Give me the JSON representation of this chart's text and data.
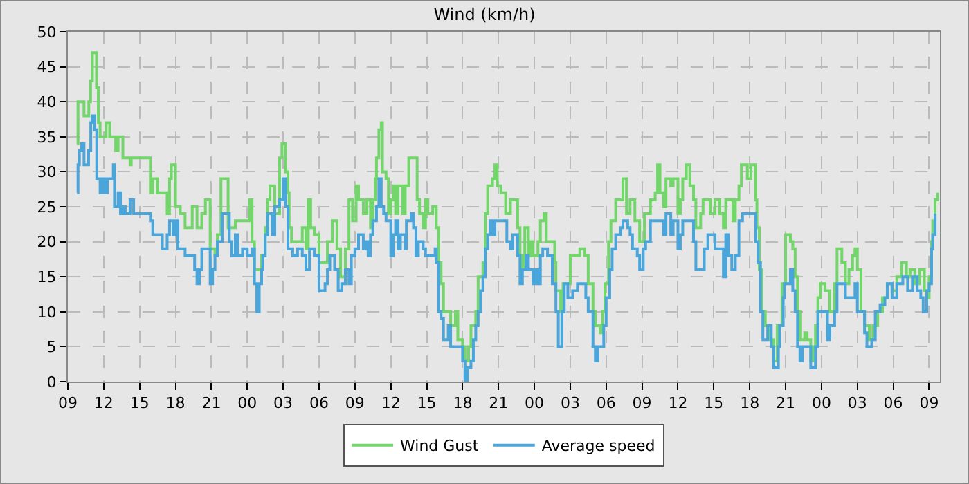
{
  "chart_data": {
    "type": "step",
    "title": "Wind (km/h)",
    "legend": "bottom",
    "grid": true,
    "xlim": [
      "--01-01T09:00",
      "--01-04T09:54"
    ],
    "ylim": [
      0,
      50
    ],
    "xticks": [
      {
        "value": "--01-01T09:00",
        "label": "09"
      },
      {
        "value": "--01-01T12:00",
        "label": "12"
      },
      {
        "value": "--01-01T15:00",
        "label": "15"
      },
      {
        "value": "--01-01T18:00",
        "label": "18"
      },
      {
        "value": "--01-01T21:00",
        "label": "21"
      },
      {
        "value": "--01-02T00:00",
        "label": "00"
      },
      {
        "value": "--01-02T03:00",
        "label": "03"
      },
      {
        "value": "--01-02T06:00",
        "label": "06"
      },
      {
        "value": "--01-02T09:00",
        "label": "09"
      },
      {
        "value": "--01-02T12:00",
        "label": "12"
      },
      {
        "value": "--01-02T15:00",
        "label": "15"
      },
      {
        "value": "--01-02T18:00",
        "label": "18"
      },
      {
        "value": "--01-02T21:00",
        "label": "21"
      },
      {
        "value": "--01-03T00:00",
        "label": "00"
      },
      {
        "value": "--01-03T03:00",
        "label": "03"
      },
      {
        "value": "--01-03T06:00",
        "label": "06"
      },
      {
        "value": "--01-03T09:00",
        "label": "09"
      },
      {
        "value": "--01-03T12:00",
        "label": "12"
      },
      {
        "value": "--01-03T15:00",
        "label": "15"
      },
      {
        "value": "--01-03T18:00",
        "label": "18"
      },
      {
        "value": "--01-03T21:00",
        "label": "21"
      },
      {
        "value": "--01-04T00:00",
        "label": "00"
      },
      {
        "value": "--01-04T03:00",
        "label": "03"
      },
      {
        "value": "--01-04T06:00",
        "label": "06"
      },
      {
        "value": "--01-04T09:00",
        "label": "09"
      }
    ],
    "yticks": [
      0,
      5,
      10,
      15,
      20,
      25,
      30,
      35,
      40,
      45,
      50
    ],
    "series": [
      {
        "name": "Wind Gust",
        "color": "#72d66a",
        "x": [
          "--01-01T09:46",
          "--01-01T09:51",
          "--01-01T10:21",
          "--01-01T10:45",
          "--01-01T10:54",
          "--01-01T11:03",
          "--01-01T11:24",
          "--01-01T11:33",
          "--01-01T11:42",
          "--01-01T12:12",
          "--01-01T12:30",
          "--01-01T13:00",
          "--01-01T13:12",
          "--01-01T13:36",
          "--01-01T14:12",
          "--01-01T14:18",
          "--01-01T15:54",
          "--01-01T16:06",
          "--01-01T16:30",
          "--01-01T17:18",
          "--01-01T17:30",
          "--01-01T17:39",
          "--01-01T18:00",
          "--01-01T18:24",
          "--01-01T18:48",
          "--01-01T19:24",
          "--01-01T19:48",
          "--01-01T20:12",
          "--01-01T20:30",
          "--01-01T20:54",
          "--01-01T21:18",
          "--01-01T21:30",
          "--01-01T21:48",
          "--01-01T22:24",
          "--01-01T23:00",
          "--01-02T00:12",
          "--01-02T00:24",
          "--01-02T00:36",
          "--01-02T01:12",
          "--01-02T01:30",
          "--01-02T01:42",
          "--01-02T01:54",
          "--01-02T02:18",
          "--01-02T02:42",
          "--01-02T02:54",
          "--01-02T03:12",
          "--01-02T03:24",
          "--01-02T03:30",
          "--01-02T03:42",
          "--01-02T04:36",
          "--01-02T04:54",
          "--01-02T05:06",
          "--01-02T05:18",
          "--01-02T05:36",
          "--01-02T06:00",
          "--01-02T06:42",
          "--01-02T07:06",
          "--01-02T07:30",
          "--01-02T07:48",
          "--01-02T08:12",
          "--01-02T08:30",
          "--01-02T08:48",
          "--01-02T09:06",
          "--01-02T09:18",
          "--01-02T09:42",
          "--01-02T10:00",
          "--01-02T10:18",
          "--01-02T10:30",
          "--01-02T10:42",
          "--01-02T10:48",
          "--01-02T11:00",
          "--01-02T11:12",
          "--01-02T11:18",
          "--01-02T11:36",
          "--01-02T11:48",
          "--01-02T12:00",
          "--01-02T12:12",
          "--01-02T12:24",
          "--01-02T12:36",
          "--01-02T13:00",
          "--01-02T13:12",
          "--01-02T13:30",
          "--01-02T14:12",
          "--01-02T14:24",
          "--01-02T14:42",
          "--01-02T14:54",
          "--01-02T15:06",
          "--01-02T15:30",
          "--01-02T15:48",
          "--01-02T16:00",
          "--01-02T16:12",
          "--01-02T16:24",
          "--01-02T17:00",
          "--01-02T17:24",
          "--01-02T17:36",
          "--01-02T18:00",
          "--01-02T18:12",
          "--01-02T18:30",
          "--01-02T18:42",
          "--01-02T19:06",
          "--01-02T19:18",
          "--01-02T19:42",
          "--01-02T19:54",
          "--01-02T20:06",
          "--01-02T20:30",
          "--01-02T20:42",
          "--01-02T20:54",
          "--01-02T21:12",
          "--01-02T21:36",
          "--01-02T22:00",
          "--01-02T22:36",
          "--01-02T22:48",
          "--01-02T23:00",
          "--01-02T23:12",
          "--01-02T23:30",
          "--01-02T23:42",
          "--01-02T23:54",
          "--01-03T00:18",
          "--01-03T00:30",
          "--01-03T00:48",
          "--01-03T01:00",
          "--01-03T01:42",
          "--01-03T01:48",
          "--01-03T02:12",
          "--01-03T02:24",
          "--01-03T03:00",
          "--01-03T03:48",
          "--01-03T04:12",
          "--01-03T04:30",
          "--01-03T04:54",
          "--01-03T05:06",
          "--01-03T05:30",
          "--01-03T05:42",
          "--01-03T05:54",
          "--01-03T06:12",
          "--01-03T06:24",
          "--01-03T06:48",
          "--01-03T07:24",
          "--01-03T07:42",
          "--01-03T08:00",
          "--01-03T08:24",
          "--01-03T08:48",
          "--01-03T09:12",
          "--01-03T09:42",
          "--01-03T10:06",
          "--01-03T10:18",
          "--01-03T10:30",
          "--01-03T10:48",
          "--01-03T11:00",
          "--01-03T11:24",
          "--01-03T11:36",
          "--01-03T12:00",
          "--01-03T12:12",
          "--01-03T12:24",
          "--01-03T12:42",
          "--01-03T13:00",
          "--01-03T13:18",
          "--01-03T13:30",
          "--01-03T13:54",
          "--01-03T14:06",
          "--01-03T14:42",
          "--01-03T15:06",
          "--01-03T15:30",
          "--01-03T15:48",
          "--01-03T16:00",
          "--01-03T16:36",
          "--01-03T16:48",
          "--01-03T17:06",
          "--01-03T17:18",
          "--01-03T17:48",
          "--01-03T18:06",
          "--01-03T18:30",
          "--01-03T18:36",
          "--01-03T18:48",
          "--01-03T19:00",
          "--01-03T19:18",
          "--01-03T19:42",
          "--01-03T20:00",
          "--01-03T20:18",
          "--01-03T20:42",
          "--01-03T21:00",
          "--01-03T21:24",
          "--01-03T21:36",
          "--01-03T21:48",
          "--01-03T22:00",
          "--01-03T22:12",
          "--01-03T22:36",
          "--01-03T22:48",
          "--01-03T23:06",
          "--01-03T23:18",
          "--01-03T23:30",
          "--01-03T23:42",
          "--01-03T23:54",
          "--01-04T00:18",
          "--01-04T00:42",
          "--01-04T01:06",
          "--01-04T01:18",
          "--01-04T01:42",
          "--01-04T02:00",
          "--01-04T02:18",
          "--01-04T02:36",
          "--01-04T02:48",
          "--01-04T03:00",
          "--01-04T03:18",
          "--01-04T03:36",
          "--01-04T04:00",
          "--01-04T04:18",
          "--01-04T04:42",
          "--01-04T05:06",
          "--01-04T05:30",
          "--01-04T05:54",
          "--01-04T06:18",
          "--01-04T06:42",
          "--01-04T07:06",
          "--01-04T07:24",
          "--01-04T07:48",
          "--01-04T08:12",
          "--01-04T08:36",
          "--01-04T08:48",
          "--01-04T09:00",
          "--01-04T09:12",
          "--01-04T09:18",
          "--01-04T09:30",
          "--01-04T09:42"
        ],
        "values": [
          34,
          40,
          38,
          40,
          43,
          47,
          42,
          37,
          35,
          37,
          35,
          33,
          35,
          32,
          31,
          32,
          27,
          29,
          27,
          24,
          29,
          31,
          25,
          24,
          22,
          25,
          22,
          24,
          26,
          19,
          18,
          21,
          29,
          22,
          23,
          26,
          20,
          16,
          18,
          22,
          26,
          28,
          24,
          32,
          34,
          30,
          27,
          22,
          20,
          22,
          19,
          26,
          22,
          21,
          17,
          20,
          23,
          19,
          15,
          19,
          26,
          23,
          28,
          26,
          24,
          26,
          22,
          26,
          29,
          32,
          36,
          37,
          30,
          29,
          24,
          26,
          28,
          24,
          28,
          24,
          28,
          32,
          26,
          24,
          22,
          26,
          24,
          25,
          22,
          17,
          14,
          10,
          8,
          10,
          6,
          5,
          3,
          5,
          8,
          10,
          15,
          17,
          24,
          28,
          29,
          31,
          28,
          27,
          24,
          26,
          22,
          18,
          16,
          22,
          18,
          20,
          18,
          20,
          23,
          24,
          20,
          17,
          13,
          10,
          14,
          18,
          19,
          18,
          14,
          10,
          8,
          7,
          10,
          14,
          20,
          23,
          26,
          29,
          24,
          26,
          23,
          20,
          24,
          26,
          27,
          31,
          27,
          25,
          29,
          28,
          29,
          24,
          26,
          29,
          31,
          28,
          26,
          22,
          24,
          26,
          24,
          26,
          24,
          22,
          26,
          23,
          26,
          28,
          31,
          29,
          31,
          26,
          22,
          16,
          10,
          8,
          6,
          3,
          8,
          14,
          21,
          20,
          19,
          15,
          10,
          6,
          7,
          6,
          3,
          5,
          8,
          12,
          14,
          13,
          10,
          14,
          19,
          17,
          14,
          16,
          18,
          19,
          16,
          10,
          8,
          6,
          8,
          10,
          12,
          14,
          13,
          15,
          17,
          15,
          16,
          14,
          16,
          13,
          12,
          15,
          20,
          23,
          26,
          27
        ]
      },
      {
        "name": "Average speed",
        "color": "#4aa6da",
        "x": [
          "--01-01T09:46",
          "--01-01T09:51",
          "--01-01T09:58",
          "--01-01T10:09",
          "--01-01T10:21",
          "--01-01T10:44",
          "--01-01T10:55",
          "--01-01T11:02",
          "--01-01T11:14",
          "--01-01T11:25",
          "--01-01T11:42",
          "--01-01T11:54",
          "--01-01T12:06",
          "--01-01T12:18",
          "--01-01T12:48",
          "--01-01T12:54",
          "--01-01T13:12",
          "--01-01T13:24",
          "--01-01T13:36",
          "--01-01T13:48",
          "--01-01T14:12",
          "--01-01T14:30",
          "--01-01T15:54",
          "--01-01T16:06",
          "--01-01T16:54",
          "--01-01T17:18",
          "--01-01T17:30",
          "--01-01T17:48",
          "--01-01T18:00",
          "--01-01T18:12",
          "--01-01T18:48",
          "--01-01T19:36",
          "--01-01T19:48",
          "--01-01T20:00",
          "--01-01T20:12",
          "--01-01T20:54",
          "--01-01T21:06",
          "--01-01T21:18",
          "--01-01T21:30",
          "--01-01T21:54",
          "--01-01T22:30",
          "--01-01T22:42",
          "--01-01T23:00",
          "--01-01T23:12",
          "--01-01T23:36",
          "--01-02T00:00",
          "--01-02T00:24",
          "--01-02T00:36",
          "--01-02T00:48",
          "--01-02T01:00",
          "--01-02T01:12",
          "--01-02T01:18",
          "--01-02T01:30",
          "--01-02T01:42",
          "--01-02T02:06",
          "--01-02T02:18",
          "--01-02T02:42",
          "--01-02T03:00",
          "--01-02T03:12",
          "--01-02T03:24",
          "--01-02T03:48",
          "--01-02T04:12",
          "--01-02T04:36",
          "--01-02T04:54",
          "--01-02T05:12",
          "--01-02T05:36",
          "--01-02T06:00",
          "--01-02T06:30",
          "--01-02T06:42",
          "--01-02T06:54",
          "--01-02T07:18",
          "--01-02T07:36",
          "--01-02T07:54",
          "--01-02T08:12",
          "--01-02T08:30",
          "--01-02T08:42",
          "--01-02T09:00",
          "--01-02T09:18",
          "--01-02T09:42",
          "--01-02T09:54",
          "--01-02T10:06",
          "--01-02T10:18",
          "--01-02T10:30",
          "--01-02T10:48",
          "--01-02T11:00",
          "--01-02T11:12",
          "--01-02T11:24",
          "--01-02T11:36",
          "--01-02T12:00",
          "--01-02T12:12",
          "--01-02T12:24",
          "--01-02T12:36",
          "--01-02T12:48",
          "--01-02T13:12",
          "--01-02T13:18",
          "--01-02T13:42",
          "--01-02T13:54",
          "--01-02T14:06",
          "--01-02T14:18",
          "--01-02T14:42",
          "--01-02T14:54",
          "--01-02T15:42",
          "--01-02T15:48",
          "--01-02T16:00",
          "--01-02T16:12",
          "--01-02T16:24",
          "--01-02T16:48",
          "--01-02T17:00",
          "--01-02T18:00",
          "--01-02T18:12",
          "--01-02T18:24",
          "--01-02T18:42",
          "--01-02T18:54",
          "--01-02T19:06",
          "--01-02T19:18",
          "--01-02T19:30",
          "--01-02T19:42",
          "--01-02T19:54",
          "--01-02T20:06",
          "--01-02T20:18",
          "--01-02T20:30",
          "--01-02T20:42",
          "--01-02T21:42",
          "--01-02T22:00",
          "--01-02T22:12",
          "--01-02T22:36",
          "--01-02T22:48",
          "--01-02T23:00",
          "--01-02T23:18",
          "--01-02T23:30",
          "--01-02T23:54",
          "--01-03T00:06",
          "--01-03T00:18",
          "--01-03T00:30",
          "--01-03T00:42",
          "--01-03T01:06",
          "--01-03T01:30",
          "--01-03T01:48",
          "--01-03T02:00",
          "--01-03T02:18",
          "--01-03T02:30",
          "--01-03T02:48",
          "--01-03T03:12",
          "--01-03T03:36",
          "--01-03T04:18",
          "--01-03T04:30",
          "--01-03T04:54",
          "--01-03T05:06",
          "--01-03T05:18",
          "--01-03T05:48",
          "--01-03T06:00",
          "--01-03T06:18",
          "--01-03T06:30",
          "--01-03T06:48",
          "--01-03T07:12",
          "--01-03T07:24",
          "--01-03T07:48",
          "--01-03T08:00",
          "--01-03T08:12",
          "--01-03T08:36",
          "--01-03T08:48",
          "--01-03T09:06",
          "--01-03T09:18",
          "--01-03T09:42",
          "--01-03T10:48",
          "--01-03T11:00",
          "--01-03T11:24",
          "--01-03T11:36",
          "--01-03T12:00",
          "--01-03T12:12",
          "--01-03T12:24",
          "--01-03T13:18",
          "--01-03T13:30",
          "--01-03T14:12",
          "--01-03T14:30",
          "--01-03T15:06",
          "--01-03T15:48",
          "--01-03T16:00",
          "--01-03T16:12",
          "--01-03T16:30",
          "--01-03T16:48",
          "--01-03T17:06",
          "--01-03T17:24",
          "--01-03T18:18",
          "--01-03T18:30",
          "--01-03T18:42",
          "--01-03T18:54",
          "--01-03T19:06",
          "--01-03T19:30",
          "--01-03T19:48",
          "--01-03T20:00",
          "--01-03T20:24",
          "--01-03T20:30",
          "--01-03T20:48",
          "--01-03T20:54",
          "--01-03T21:24",
          "--01-03T21:36",
          "--01-03T21:48",
          "--01-03T22:00",
          "--01-03T22:12",
          "--01-03T22:24",
          "--01-03T23:00",
          "--01-03T23:06",
          "--01-03T23:30",
          "--01-03T23:42",
          "--01-04T00:06",
          "--01-04T00:30",
          "--01-04T00:42",
          "--01-04T01:06",
          "--01-04T01:18",
          "--01-04T02:00",
          "--01-04T02:48",
          "--01-04T03:00",
          "--01-04T03:36",
          "--01-04T03:48",
          "--01-04T04:12",
          "--01-04T04:30",
          "--01-04T04:54",
          "--01-04T05:18",
          "--01-04T05:30",
          "--01-04T05:54",
          "--01-04T06:18",
          "--01-04T06:48",
          "--01-04T07:12",
          "--01-04T07:36",
          "--01-04T08:00",
          "--01-04T08:18",
          "--01-04T08:30",
          "--01-04T08:48",
          "--01-04T09:00",
          "--01-04T09:12",
          "--01-04T09:18",
          "--01-04T09:30"
        ],
        "values": [
          27,
          31,
          33,
          34,
          31,
          33,
          37,
          38,
          36,
          29,
          27,
          29,
          27,
          29,
          31,
          25,
          27,
          24,
          25,
          24,
          26,
          24,
          23,
          21,
          19,
          21,
          23,
          21,
          23,
          19,
          18,
          16,
          14,
          16,
          19,
          14,
          16,
          18,
          20,
          24,
          20,
          18,
          21,
          18,
          19,
          18,
          19,
          14,
          10,
          14,
          16,
          18,
          21,
          24,
          21,
          25,
          26,
          29,
          25,
          19,
          18,
          19,
          18,
          16,
          19,
          18,
          13,
          14,
          16,
          18,
          16,
          13,
          14,
          16,
          14,
          18,
          19,
          21,
          19,
          20,
          18,
          21,
          23,
          25,
          29,
          25,
          24,
          23,
          18,
          21,
          23,
          19,
          21,
          19,
          23,
          24,
          22,
          18,
          20,
          19,
          18,
          19,
          17,
          10,
          9,
          6,
          8,
          5,
          3,
          0,
          2,
          3,
          6,
          8,
          10,
          13,
          15,
          19,
          21,
          23,
          21,
          23,
          20,
          19,
          21,
          18,
          14,
          16,
          18,
          16,
          14,
          16,
          14,
          18,
          19,
          18,
          14,
          10,
          5,
          10,
          14,
          12,
          13,
          14,
          12,
          10,
          5,
          3,
          5,
          8,
          12,
          16,
          19,
          21,
          22,
          23,
          22,
          21,
          19,
          18,
          16,
          19,
          20,
          23,
          21,
          24,
          21,
          23,
          19,
          21,
          23,
          20,
          16,
          19,
          21,
          19,
          15,
          21,
          18,
          16,
          18,
          23,
          24,
          24,
          20,
          17,
          10,
          6,
          8,
          5,
          2,
          5,
          8,
          12,
          14,
          16,
          13,
          10,
          5,
          3,
          5,
          5,
          2,
          5,
          10,
          10,
          6,
          8,
          10,
          14,
          12,
          14,
          10,
          7,
          5,
          6,
          10,
          11,
          12,
          14,
          12,
          14,
          15,
          13,
          15,
          13,
          12,
          10,
          13,
          14,
          19,
          21,
          24
        ]
      }
    ]
  }
}
